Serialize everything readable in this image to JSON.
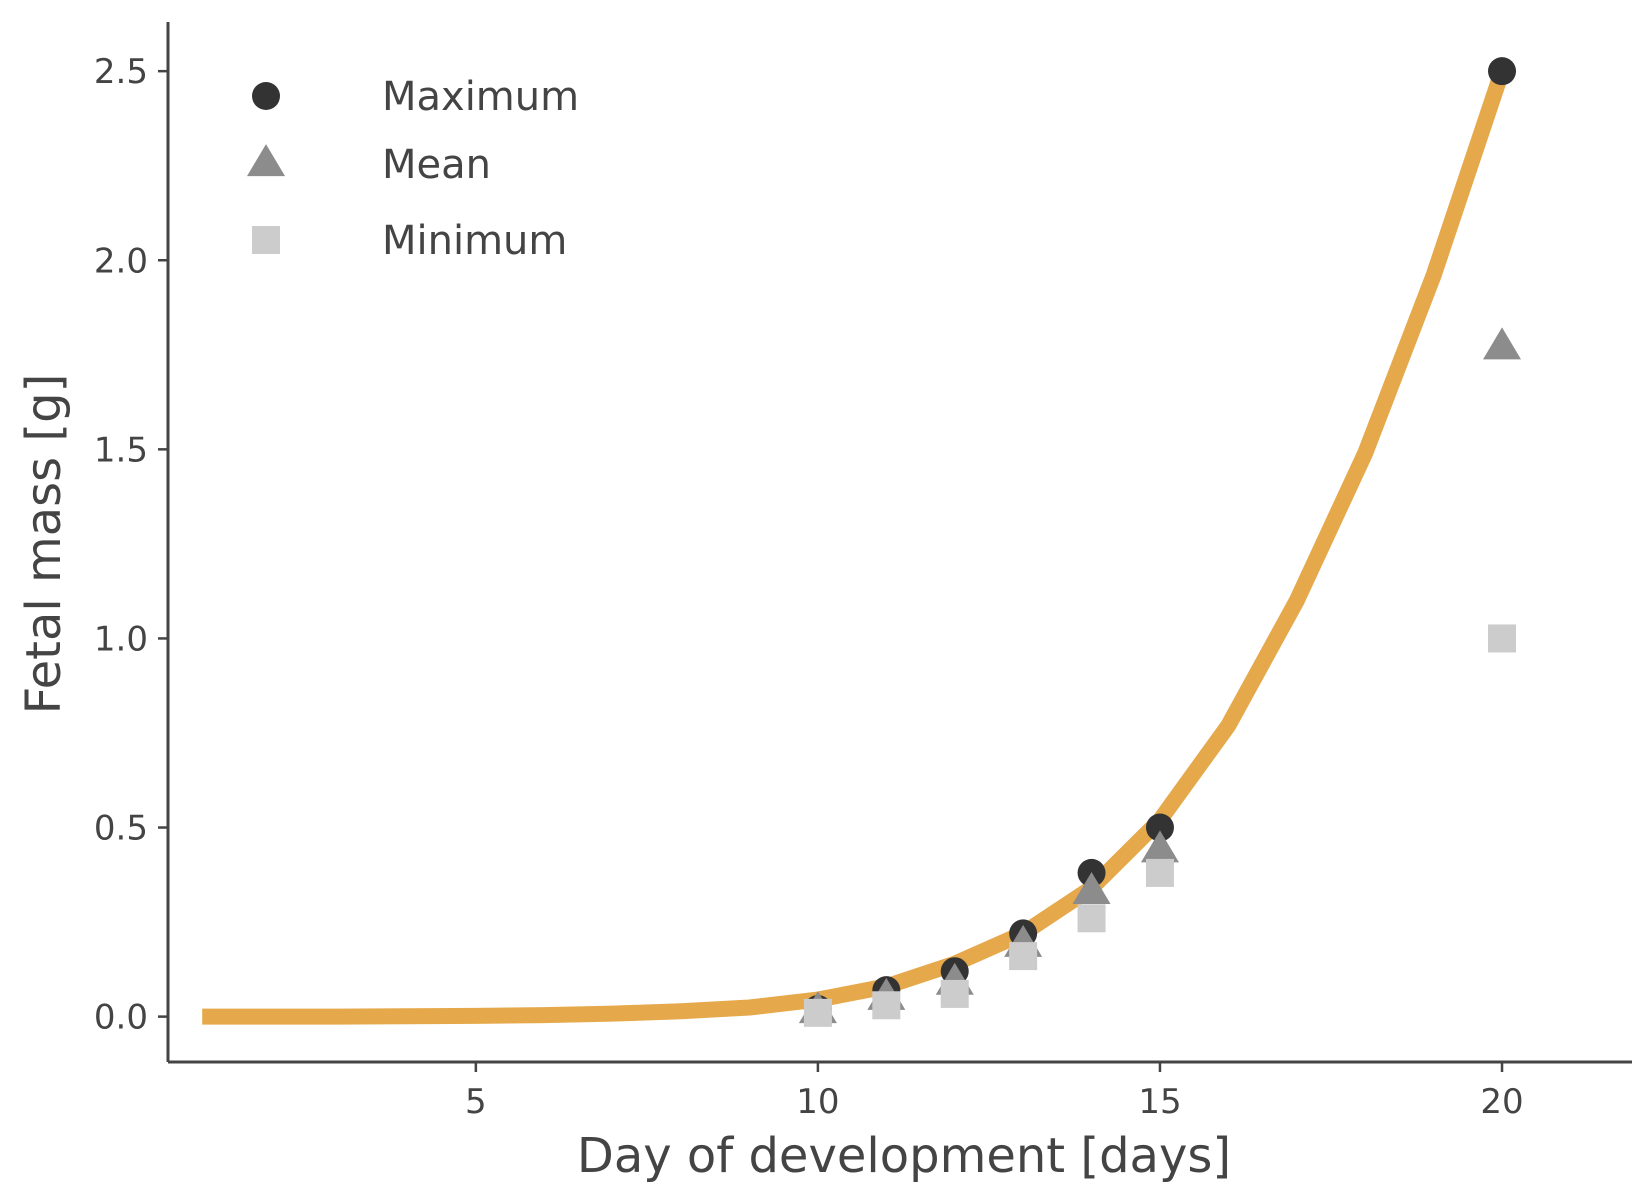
{
  "chart_data": {
    "type": "scatter",
    "xlabel": "Day of development [days]",
    "ylabel": "Fetal mass [g]",
    "xlim": [
      0.5,
      21.9
    ],
    "ylim": [
      -0.12,
      2.63
    ],
    "xticks": [
      5,
      10,
      15,
      20
    ],
    "xtick_labels": [
      "5",
      "10",
      "15",
      "20"
    ],
    "yticks": [
      0.0,
      0.5,
      1.0,
      1.5,
      2.0,
      2.5
    ],
    "ytick_labels": [
      "0.0",
      "0.5",
      "1.0",
      "1.5",
      "2.0",
      "2.5"
    ],
    "grid": false,
    "legend_position": "top-left",
    "series": [
      {
        "name": "Maximum",
        "marker": "circle",
        "color": "#333333",
        "x": [
          10,
          11,
          12,
          13,
          14,
          15,
          20
        ],
        "y": [
          0.02,
          0.07,
          0.12,
          0.22,
          0.38,
          0.5,
          2.5
        ]
      },
      {
        "name": "Mean",
        "marker": "triangle",
        "color": "#8c8c8c",
        "x": [
          10,
          11,
          12,
          13,
          14,
          15,
          20
        ],
        "y": [
          0.015,
          0.05,
          0.09,
          0.19,
          0.33,
          0.44,
          1.77
        ]
      },
      {
        "name": "Minimum",
        "marker": "square",
        "color": "#cccccc",
        "x": [
          10,
          11,
          12,
          13,
          14,
          15,
          20
        ],
        "y": [
          0.01,
          0.03,
          0.06,
          0.16,
          0.26,
          0.38,
          1.0
        ]
      }
    ],
    "fit_curve": {
      "color": "#e5a94b",
      "x": [
        1,
        2,
        3,
        4,
        5,
        6,
        7,
        8,
        9,
        10,
        11,
        12,
        13,
        14,
        15,
        16,
        17,
        18,
        19,
        20
      ],
      "y": [
        0.0,
        0.0,
        0.0,
        0.001,
        0.002,
        0.004,
        0.008,
        0.014,
        0.024,
        0.045,
        0.08,
        0.14,
        0.22,
        0.34,
        0.52,
        0.77,
        1.1,
        1.49,
        1.96,
        2.5
      ]
    }
  }
}
